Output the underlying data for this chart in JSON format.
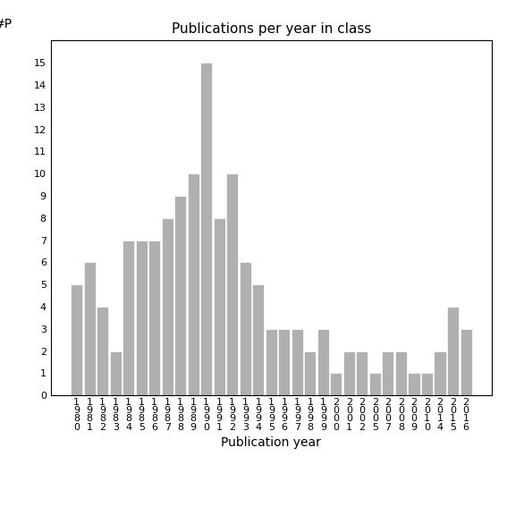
{
  "years": [
    "1980",
    "1981",
    "1982",
    "1983",
    "1984",
    "1985",
    "1986",
    "1987",
    "1988",
    "1989",
    "1990",
    "1991",
    "1992",
    "1993",
    "1994",
    "1995",
    "1996",
    "1997",
    "1998",
    "1999",
    "2000",
    "2001",
    "2002",
    "2005",
    "2007",
    "2008",
    "2009",
    "2010",
    "2014",
    "2015",
    "2016"
  ],
  "values": [
    5,
    6,
    4,
    2,
    7,
    7,
    7,
    8,
    9,
    10,
    15,
    8,
    10,
    6,
    5,
    3,
    3,
    3,
    2,
    3,
    1,
    2,
    2,
    1,
    2,
    2,
    1,
    1,
    2,
    4,
    3
  ],
  "bar_color": "#b0b0b0",
  "bar_edgecolor": "#ffffff",
  "title": "Publications per year in class",
  "xlabel": "Publication year",
  "ylabel": "#P",
  "ylim": [
    0,
    16
  ],
  "yticks": [
    0,
    1,
    2,
    3,
    4,
    5,
    6,
    7,
    8,
    9,
    10,
    11,
    12,
    13,
    14,
    15
  ],
  "background_color": "#ffffff",
  "title_fontsize": 11,
  "label_fontsize": 10,
  "tick_fontsize": 8
}
